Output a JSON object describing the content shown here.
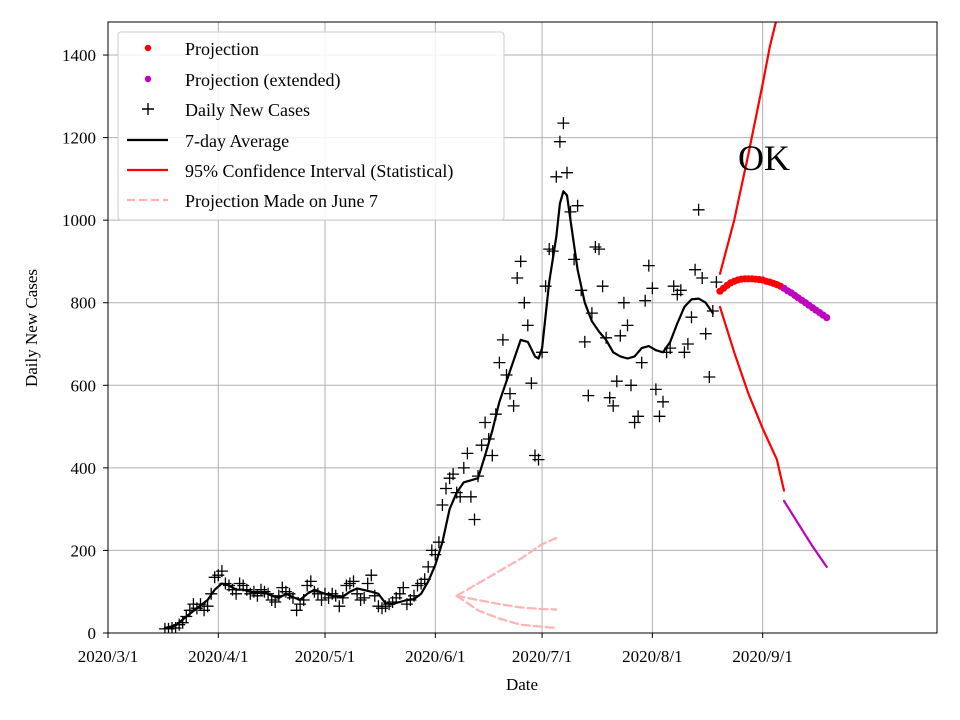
{
  "chart_data": {
    "type": "line",
    "state_label": "OK",
    "xlabel": "Date",
    "ylabel": "Daily New Cases",
    "x_tick_labels": [
      "2020/3/1",
      "2020/4/1",
      "2020/5/1",
      "2020/6/1",
      "2020/7/1",
      "2020/8/1",
      "2020/9/1"
    ],
    "x_tick_days": [
      0,
      31,
      61,
      92,
      122,
      153,
      184
    ],
    "xlim_days": [
      0,
      233
    ],
    "ylim": [
      0,
      1480
    ],
    "y_ticks": [
      0,
      200,
      400,
      600,
      800,
      1000,
      1200,
      1400
    ],
    "grid": true,
    "legend_position": "top-left",
    "legend": {
      "projection": "Projection",
      "projection_extended": "Projection (extended)",
      "daily": "Daily New Cases",
      "avg7": "7-day Average",
      "ci": "95% Confidence Interval (Statistical)",
      "june7": "Projection Made on June 7"
    },
    "colors": {
      "projection": "#ff0000",
      "projection_extended": "#bf00bf",
      "daily": "#000000",
      "avg7": "#000000",
      "ci": "#ff0000",
      "ci_extended": "#bf00bf",
      "june7": "#ffb3b3",
      "grid": "#b0b0b0"
    },
    "daily_new_cases": [
      [
        16,
        10
      ],
      [
        17,
        10
      ],
      [
        18,
        12
      ],
      [
        19,
        12
      ],
      [
        20,
        20
      ],
      [
        21,
        25
      ],
      [
        22,
        40
      ],
      [
        23,
        55
      ],
      [
        24,
        70
      ],
      [
        25,
        60
      ],
      [
        26,
        70
      ],
      [
        27,
        55
      ],
      [
        28,
        65
      ],
      [
        29,
        95
      ],
      [
        30,
        135
      ],
      [
        31,
        140
      ],
      [
        32,
        150
      ],
      [
        33,
        120
      ],
      [
        34,
        115
      ],
      [
        35,
        105
      ],
      [
        36,
        95
      ],
      [
        37,
        120
      ],
      [
        38,
        115
      ],
      [
        39,
        105
      ],
      [
        40,
        95
      ],
      [
        41,
        100
      ],
      [
        42,
        90
      ],
      [
        43,
        105
      ],
      [
        44,
        100
      ],
      [
        45,
        95
      ],
      [
        46,
        80
      ],
      [
        47,
        75
      ],
      [
        48,
        90
      ],
      [
        49,
        110
      ],
      [
        50,
        100
      ],
      [
        51,
        95
      ],
      [
        52,
        85
      ],
      [
        53,
        55
      ],
      [
        54,
        70
      ],
      [
        55,
        80
      ],
      [
        56,
        115
      ],
      [
        57,
        125
      ],
      [
        58,
        100
      ],
      [
        59,
        95
      ],
      [
        60,
        80
      ],
      [
        61,
        95
      ],
      [
        62,
        85
      ],
      [
        63,
        95
      ],
      [
        64,
        90
      ],
      [
        65,
        65
      ],
      [
        66,
        85
      ],
      [
        67,
        115
      ],
      [
        68,
        120
      ],
      [
        69,
        125
      ],
      [
        70,
        95
      ],
      [
        71,
        80
      ],
      [
        72,
        85
      ],
      [
        73,
        120
      ],
      [
        74,
        140
      ],
      [
        75,
        90
      ],
      [
        76,
        65
      ],
      [
        77,
        60
      ],
      [
        78,
        65
      ],
      [
        79,
        70
      ],
      [
        80,
        75
      ],
      [
        81,
        85
      ],
      [
        82,
        95
      ],
      [
        83,
        110
      ],
      [
        84,
        70
      ],
      [
        85,
        80
      ],
      [
        86,
        90
      ],
      [
        87,
        115
      ],
      [
        88,
        120
      ],
      [
        89,
        130
      ],
      [
        90,
        160
      ],
      [
        91,
        200
      ],
      [
        92,
        190
      ],
      [
        93,
        220
      ],
      [
        94,
        310
      ],
      [
        95,
        350
      ],
      [
        96,
        375
      ],
      [
        97,
        385
      ],
      [
        98,
        340
      ],
      [
        99,
        330
      ],
      [
        100,
        400
      ],
      [
        101,
        435
      ],
      [
        102,
        330
      ],
      [
        103,
        275
      ],
      [
        104,
        380
      ],
      [
        105,
        455
      ],
      [
        106,
        510
      ],
      [
        107,
        470
      ],
      [
        108,
        430
      ],
      [
        109,
        530
      ],
      [
        110,
        655
      ],
      [
        111,
        710
      ],
      [
        112,
        625
      ],
      [
        113,
        580
      ],
      [
        114,
        550
      ],
      [
        115,
        860
      ],
      [
        116,
        900
      ],
      [
        117,
        800
      ],
      [
        118,
        745
      ],
      [
        119,
        605
      ],
      [
        120,
        430
      ],
      [
        121,
        420
      ],
      [
        122,
        680
      ],
      [
        123,
        840
      ],
      [
        124,
        930
      ],
      [
        125,
        925
      ],
      [
        126,
        1105
      ],
      [
        127,
        1190
      ],
      [
        128,
        1235
      ],
      [
        129,
        1115
      ],
      [
        130,
        1020
      ],
      [
        131,
        905
      ],
      [
        132,
        1035
      ],
      [
        133,
        830
      ],
      [
        134,
        705
      ],
      [
        135,
        575
      ],
      [
        136,
        775
      ],
      [
        137,
        935
      ],
      [
        138,
        930
      ],
      [
        139,
        840
      ],
      [
        140,
        715
      ],
      [
        141,
        570
      ],
      [
        142,
        550
      ],
      [
        143,
        610
      ],
      [
        144,
        720
      ],
      [
        145,
        800
      ],
      [
        146,
        745
      ],
      [
        147,
        600
      ],
      [
        148,
        510
      ],
      [
        149,
        525
      ],
      [
        150,
        655
      ],
      [
        151,
        805
      ],
      [
        152,
        890
      ],
      [
        153,
        835
      ],
      [
        154,
        590
      ],
      [
        155,
        525
      ],
      [
        156,
        560
      ],
      [
        157,
        680
      ],
      [
        158,
        690
      ],
      [
        159,
        840
      ],
      [
        160,
        820
      ],
      [
        161,
        830
      ],
      [
        162,
        680
      ],
      [
        163,
        700
      ],
      [
        164,
        765
      ],
      [
        165,
        880
      ],
      [
        166,
        1025
      ],
      [
        167,
        860
      ],
      [
        168,
        725
      ],
      [
        169,
        620
      ],
      [
        170,
        780
      ],
      [
        171,
        850
      ]
    ],
    "seven_day_average": [
      [
        16,
        12
      ],
      [
        19,
        18
      ],
      [
        22,
        40
      ],
      [
        25,
        60
      ],
      [
        28,
        80
      ],
      [
        30,
        105
      ],
      [
        32,
        120
      ],
      [
        34,
        115
      ],
      [
        36,
        105
      ],
      [
        38,
        105
      ],
      [
        40,
        100
      ],
      [
        42,
        97
      ],
      [
        44,
        98
      ],
      [
        46,
        90
      ],
      [
        48,
        85
      ],
      [
        50,
        95
      ],
      [
        52,
        87
      ],
      [
        54,
        80
      ],
      [
        56,
        95
      ],
      [
        58,
        105
      ],
      [
        60,
        98
      ],
      [
        62,
        92
      ],
      [
        64,
        88
      ],
      [
        66,
        88
      ],
      [
        68,
        100
      ],
      [
        70,
        108
      ],
      [
        72,
        104
      ],
      [
        74,
        100
      ],
      [
        76,
        95
      ],
      [
        78,
        72
      ],
      [
        80,
        70
      ],
      [
        82,
        75
      ],
      [
        84,
        80
      ],
      [
        86,
        82
      ],
      [
        88,
        95
      ],
      [
        90,
        125
      ],
      [
        92,
        165
      ],
      [
        94,
        220
      ],
      [
        96,
        300
      ],
      [
        98,
        340
      ],
      [
        100,
        365
      ],
      [
        102,
        370
      ],
      [
        104,
        375
      ],
      [
        106,
        430
      ],
      [
        108,
        490
      ],
      [
        110,
        560
      ],
      [
        112,
        610
      ],
      [
        114,
        660
      ],
      [
        116,
        710
      ],
      [
        118,
        705
      ],
      [
        120,
        670
      ],
      [
        121,
        665
      ],
      [
        122,
        690
      ],
      [
        124,
        850
      ],
      [
        126,
        960
      ],
      [
        127,
        1040
      ],
      [
        128,
        1070
      ],
      [
        129,
        1060
      ],
      [
        130,
        1000
      ],
      [
        132,
        880
      ],
      [
        134,
        800
      ],
      [
        136,
        755
      ],
      [
        138,
        730
      ],
      [
        140,
        710
      ],
      [
        142,
        680
      ],
      [
        144,
        670
      ],
      [
        146,
        665
      ],
      [
        148,
        670
      ],
      [
        150,
        690
      ],
      [
        152,
        695
      ],
      [
        154,
        685
      ],
      [
        156,
        680
      ],
      [
        158,
        705
      ],
      [
        160,
        750
      ],
      [
        162,
        790
      ],
      [
        164,
        808
      ],
      [
        166,
        810
      ],
      [
        168,
        800
      ],
      [
        170,
        775
      ]
    ],
    "projection": [
      [
        172,
        828
      ],
      [
        173,
        835
      ],
      [
        174,
        842
      ],
      [
        175,
        848
      ],
      [
        176,
        852
      ],
      [
        177,
        855
      ],
      [
        178,
        857
      ],
      [
        179,
        858
      ],
      [
        180,
        858
      ],
      [
        181,
        858
      ],
      [
        182,
        857
      ],
      [
        183,
        856
      ],
      [
        184,
        855
      ],
      [
        185,
        852
      ],
      [
        186,
        850
      ],
      [
        187,
        847
      ],
      [
        188,
        844
      ],
      [
        189,
        840
      ]
    ],
    "projection_extended": [
      [
        190,
        835
      ],
      [
        191,
        829
      ],
      [
        192,
        824
      ],
      [
        193,
        818
      ],
      [
        194,
        812
      ],
      [
        195,
        806
      ],
      [
        196,
        800
      ],
      [
        197,
        794
      ],
      [
        198,
        788
      ],
      [
        199,
        782
      ],
      [
        200,
        776
      ],
      [
        201,
        770
      ],
      [
        202,
        764
      ]
    ],
    "ci_upper": [
      [
        172,
        870
      ],
      [
        176,
        1000
      ],
      [
        180,
        1160
      ],
      [
        184,
        1330
      ],
      [
        186,
        1420
      ],
      [
        188,
        1490
      ]
    ],
    "ci_lower": [
      [
        172,
        790
      ],
      [
        176,
        680
      ],
      [
        180,
        580
      ],
      [
        184,
        495
      ],
      [
        188,
        420
      ],
      [
        190,
        345
      ]
    ],
    "ci_lower_extended": [
      [
        190,
        320
      ],
      [
        194,
        265
      ],
      [
        198,
        210
      ],
      [
        202,
        160
      ]
    ],
    "june7_projection_upper": [
      [
        98,
        90
      ],
      [
        104,
        120
      ],
      [
        110,
        150
      ],
      [
        116,
        180
      ],
      [
        122,
        215
      ],
      [
        126,
        230
      ]
    ],
    "june7_projection_mid": [
      [
        98,
        90
      ],
      [
        104,
        80
      ],
      [
        110,
        70
      ],
      [
        116,
        62
      ],
      [
        122,
        58
      ],
      [
        126,
        57
      ]
    ],
    "june7_projection_lower": [
      [
        98,
        90
      ],
      [
        104,
        55
      ],
      [
        110,
        35
      ],
      [
        116,
        20
      ],
      [
        122,
        15
      ],
      [
        126,
        12
      ]
    ]
  }
}
